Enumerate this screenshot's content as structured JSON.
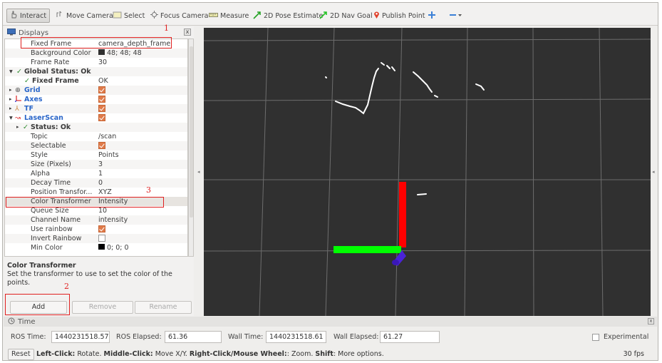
{
  "toolbar": {
    "interact": "Interact",
    "move_camera": "Move Camera",
    "select": "Select",
    "focus_camera": "Focus Camera",
    "measure": "Measure",
    "pose_estimate": "2D Pose Estimate",
    "nav_goal": "2D Nav Goal",
    "publish_point": "Publish Point"
  },
  "displays": {
    "title": "Displays",
    "close_glyph": "x",
    "rows": [
      {
        "key": "Fixed Frame",
        "value": "camera_depth_frame"
      },
      {
        "key": "Background Color",
        "value": "48; 48; 48",
        "swatch": "#303030"
      },
      {
        "key": "Frame Rate",
        "value": "30"
      },
      {
        "key": "Global Status: Ok",
        "value": ""
      },
      {
        "key": "Fixed Frame",
        "value": "OK"
      },
      {
        "key": "Grid",
        "value": ""
      },
      {
        "key": "Axes",
        "value": ""
      },
      {
        "key": "TF",
        "value": ""
      },
      {
        "key": "LaserScan",
        "value": ""
      },
      {
        "key": "Status: Ok",
        "value": ""
      },
      {
        "key": "Topic",
        "value": "/scan"
      },
      {
        "key": "Selectable",
        "value": ""
      },
      {
        "key": "Style",
        "value": "Points"
      },
      {
        "key": "Size (Pixels)",
        "value": "3"
      },
      {
        "key": "Alpha",
        "value": "1"
      },
      {
        "key": "Decay Time",
        "value": "0"
      },
      {
        "key": "Position Transfor...",
        "value": "XYZ"
      },
      {
        "key": "Color Transformer",
        "value": "Intensity"
      },
      {
        "key": "Queue Size",
        "value": "10"
      },
      {
        "key": "Channel Name",
        "value": "intensity"
      },
      {
        "key": "Use rainbow",
        "value": ""
      },
      {
        "key": "Invert Rainbow",
        "value": ""
      },
      {
        "key": "Min Color",
        "value": "0; 0; 0",
        "swatch": "#000000"
      }
    ]
  },
  "description": {
    "title": "Color Transformer",
    "text": "Set the transformer to use to set the color of the points."
  },
  "buttons": {
    "add": "Add",
    "remove": "Remove",
    "rename": "Rename"
  },
  "annotations": [
    "1",
    "2",
    "3"
  ],
  "time": {
    "title": "Time",
    "close_glyph": "x",
    "ros_time_label": "ROS Time:",
    "ros_time": "1440231518.57",
    "ros_elapsed_label": "ROS Elapsed:",
    "ros_elapsed": "61.36",
    "wall_time_label": "Wall Time:",
    "wall_time": "1440231518.61",
    "wall_elapsed_label": "Wall Elapsed:",
    "wall_elapsed": "61.27",
    "experimental": "Experimental"
  },
  "status": {
    "reset": "Reset",
    "left_click": "Left-Click:",
    "left_click_desc": " Rotate. ",
    "middle_click": "Middle-Click:",
    "middle_click_desc": " Move X/Y. ",
    "right_click": "Right-Click/Mouse Wheel:",
    "right_click_desc": ": Zoom. ",
    "shift": "Shift",
    "shift_desc": ": More options.",
    "fps": "30 fps"
  },
  "colors": {
    "viewport_bg": "#303030",
    "annotation": "#e02020",
    "axis_x": "#ff0000",
    "axis_y": "#00ff00",
    "axis_z": "#5a2ad6"
  }
}
